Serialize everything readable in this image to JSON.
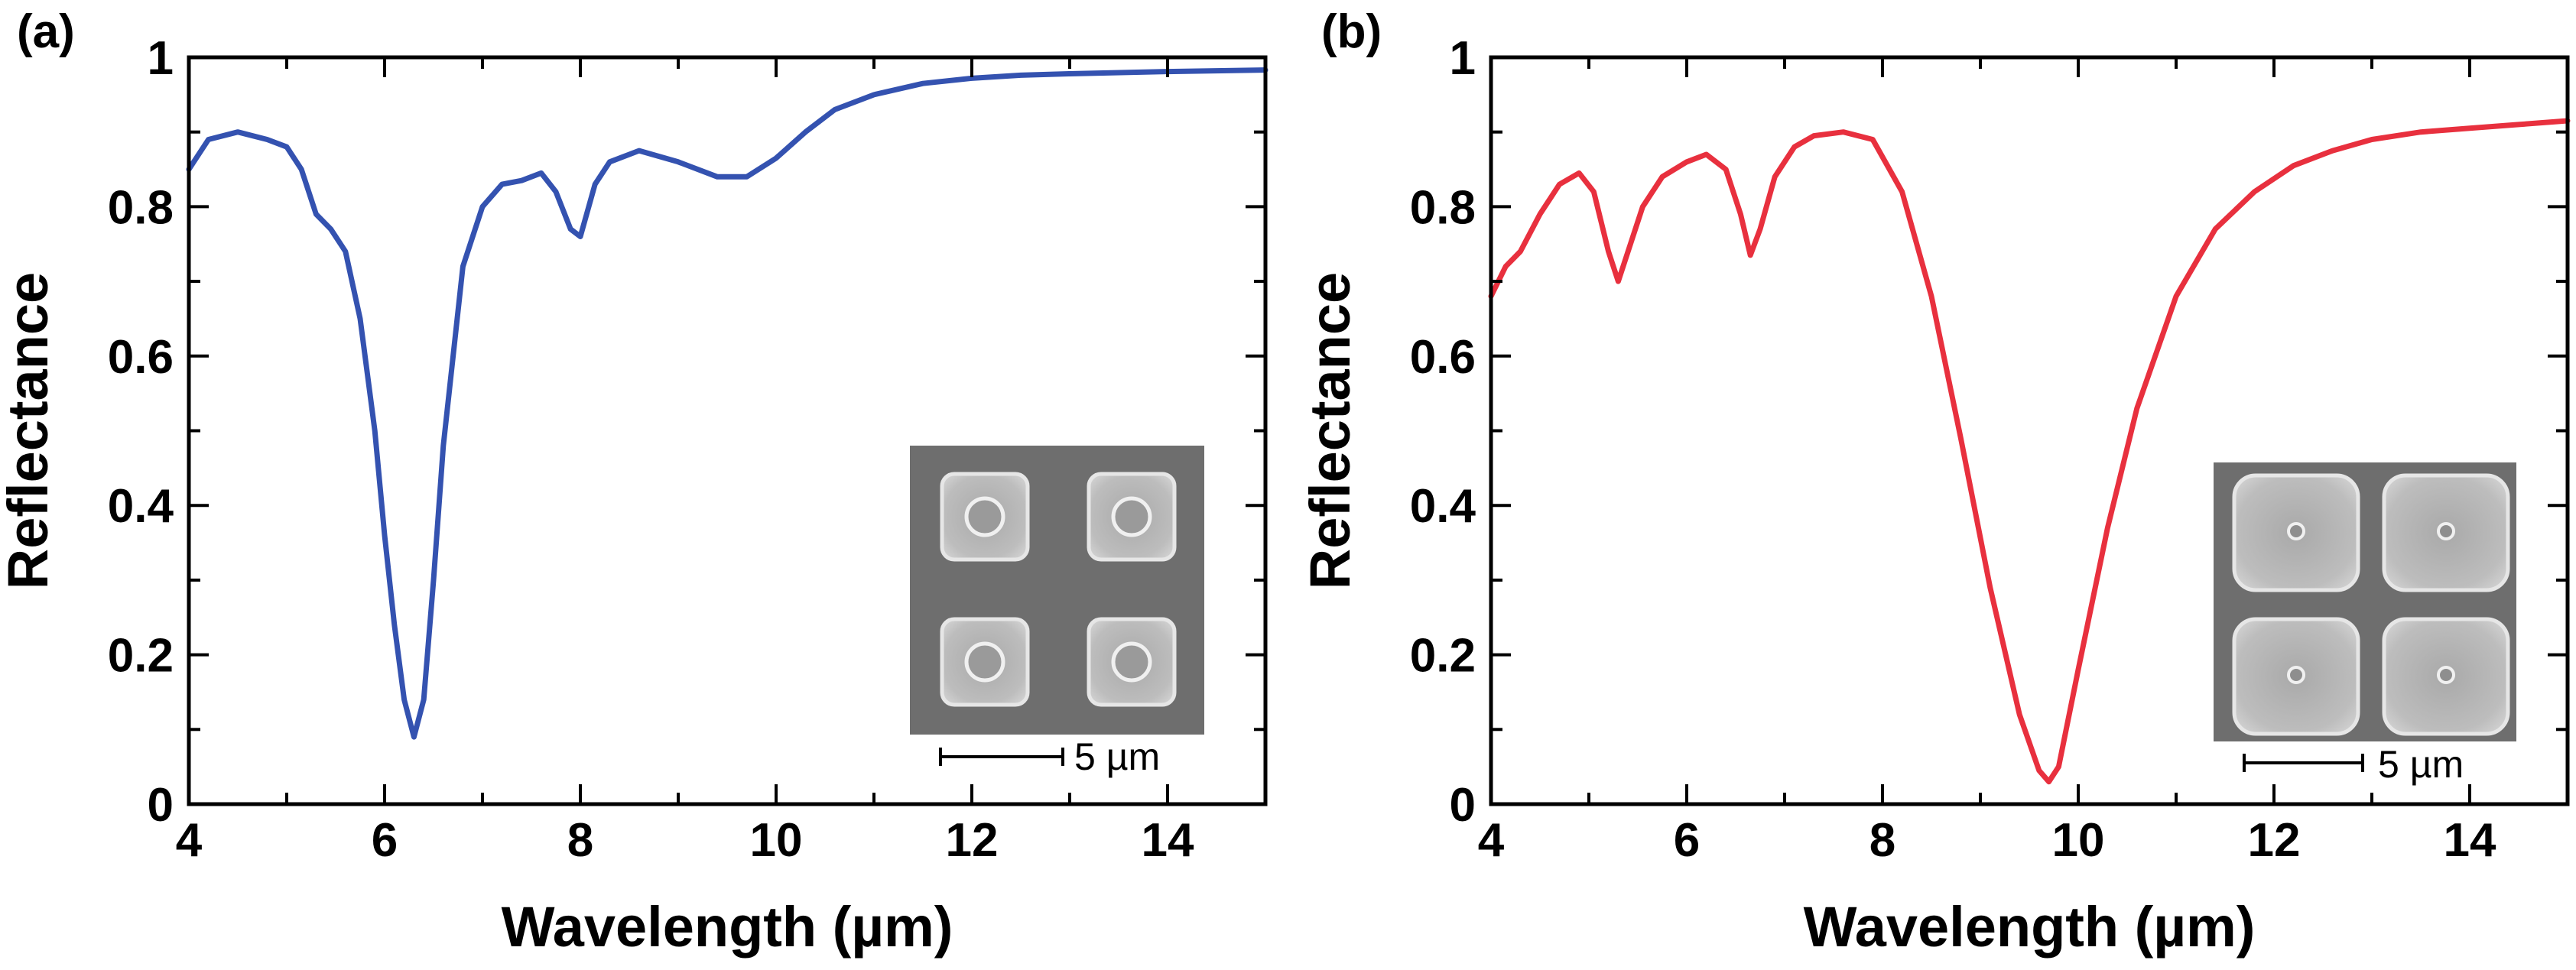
{
  "chart_data": [
    {
      "type": "line",
      "panel_label": "(a)",
      "xlabel": "Wavelength (µm)",
      "ylabel": "Reflectance",
      "xlim": [
        4,
        15
      ],
      "ylim": [
        0,
        1
      ],
      "xticks": [
        4,
        6,
        8,
        10,
        12,
        14
      ],
      "xtick_labels": [
        "4",
        "6",
        "8",
        "10",
        "12",
        "14"
      ],
      "yticks": [
        0,
        0.2,
        0.4,
        0.6,
        0.8,
        1
      ],
      "ytick_labels": [
        "0",
        "0.2",
        "0.4",
        "0.6",
        "0.8",
        "1"
      ],
      "series": [
        {
          "name": "Reflectance (a)",
          "color": "#3452b0",
          "x": [
            4.0,
            4.2,
            4.5,
            4.8,
            5.0,
            5.15,
            5.3,
            5.45,
            5.6,
            5.75,
            5.9,
            6.0,
            6.1,
            6.2,
            6.3,
            6.4,
            6.5,
            6.6,
            6.8,
            7.0,
            7.2,
            7.4,
            7.6,
            7.75,
            7.9,
            8.0,
            8.15,
            8.3,
            8.6,
            9.0,
            9.4,
            9.7,
            10.0,
            10.3,
            10.6,
            11.0,
            11.5,
            12.0,
            12.5,
            13.0,
            14.0,
            15.0
          ],
          "y": [
            0.85,
            0.89,
            0.9,
            0.89,
            0.88,
            0.85,
            0.79,
            0.77,
            0.74,
            0.65,
            0.5,
            0.36,
            0.24,
            0.14,
            0.09,
            0.14,
            0.3,
            0.48,
            0.72,
            0.8,
            0.83,
            0.835,
            0.845,
            0.82,
            0.77,
            0.76,
            0.83,
            0.86,
            0.875,
            0.86,
            0.84,
            0.84,
            0.865,
            0.9,
            0.93,
            0.95,
            0.965,
            0.972,
            0.976,
            0.978,
            0.981,
            0.983
          ]
        }
      ],
      "inset": {
        "scale_bar_label": "5 µm"
      }
    },
    {
      "type": "line",
      "panel_label": "(b)",
      "xlabel": "Wavelength (µm)",
      "ylabel": "Reflectance",
      "xlim": [
        4,
        15
      ],
      "ylim": [
        0,
        1
      ],
      "xticks": [
        4,
        6,
        8,
        10,
        12,
        14
      ],
      "xtick_labels": [
        "4",
        "6",
        "8",
        "10",
        "12",
        "14"
      ],
      "yticks": [
        0,
        0.2,
        0.4,
        0.6,
        0.8,
        1
      ],
      "ytick_labels": [
        "0",
        "0.2",
        "0.4",
        "0.6",
        "0.8",
        "1"
      ],
      "series": [
        {
          "name": "Reflectance (b)",
          "color": "#e8303e",
          "x": [
            4.0,
            4.15,
            4.3,
            4.5,
            4.7,
            4.9,
            5.05,
            5.2,
            5.3,
            5.4,
            5.55,
            5.75,
            6.0,
            6.2,
            6.4,
            6.55,
            6.65,
            6.75,
            6.9,
            7.1,
            7.3,
            7.6,
            7.9,
            8.2,
            8.5,
            8.8,
            9.1,
            9.4,
            9.6,
            9.7,
            9.8,
            10.0,
            10.3,
            10.6,
            11.0,
            11.4,
            11.8,
            12.2,
            12.6,
            13.0,
            13.5,
            14.0,
            14.5,
            15.0
          ],
          "y": [
            0.68,
            0.72,
            0.74,
            0.79,
            0.83,
            0.845,
            0.82,
            0.74,
            0.7,
            0.74,
            0.8,
            0.84,
            0.86,
            0.87,
            0.85,
            0.79,
            0.735,
            0.77,
            0.84,
            0.88,
            0.895,
            0.9,
            0.89,
            0.82,
            0.68,
            0.49,
            0.29,
            0.12,
            0.045,
            0.03,
            0.05,
            0.18,
            0.37,
            0.53,
            0.68,
            0.77,
            0.82,
            0.855,
            0.875,
            0.89,
            0.9,
            0.905,
            0.91,
            0.915
          ]
        }
      ],
      "inset": {
        "scale_bar_label": "5 µm"
      }
    }
  ]
}
